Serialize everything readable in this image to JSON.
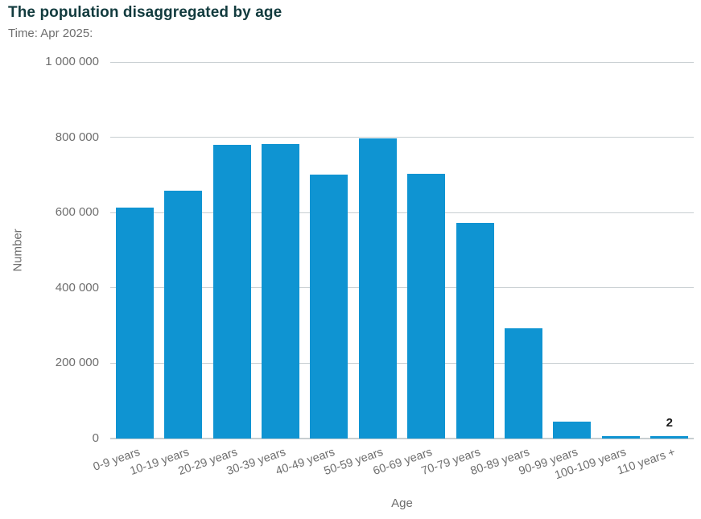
{
  "header": {
    "title": "The population disaggregated by age",
    "subtitle": "Time: Apr 2025:"
  },
  "chart_data": {
    "type": "bar",
    "title": "The population disaggregated by age",
    "subtitle": "Time: Apr 2025:",
    "xlabel": "Age",
    "ylabel": "Number",
    "ylim": [
      0,
      1000000
    ],
    "ytick_step": 200000,
    "ytick_labels_bottom_to_top": [
      "0",
      "200 000",
      "400 000",
      "600 000",
      "800 000",
      "1 000 000"
    ],
    "grid": true,
    "legend": "none",
    "categories": [
      "0-9 years",
      "10-19 years",
      "20-29 years",
      "30-39 years",
      "40-49 years",
      "50-59 years",
      "60-69 years",
      "70-79 years",
      "80-89 years",
      "90-99 years",
      "100-109 years",
      "110 years +"
    ],
    "values": [
      614000,
      659000,
      779000,
      783000,
      700000,
      797000,
      704000,
      573000,
      293000,
      45000,
      6000,
      2
    ],
    "annotations": [
      {
        "category_index": 11,
        "text": "2"
      }
    ]
  },
  "colors": {
    "bar": "#0f94d2",
    "title": "#123b3e",
    "muted_text": "#6e6e6e",
    "gridline": "#c7ced1",
    "annotation_text": "#1a1a1a"
  }
}
